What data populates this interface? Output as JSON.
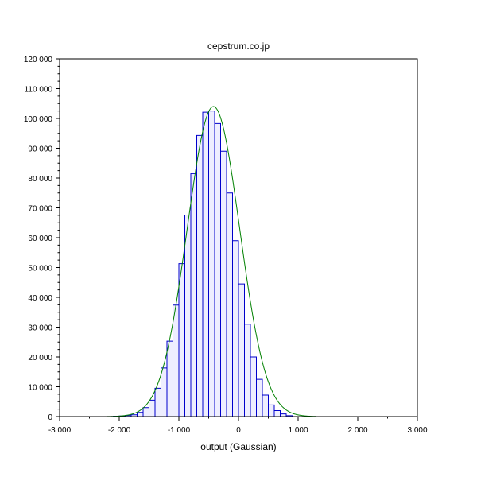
{
  "chart_data": {
    "type": "bar",
    "title": "cepstrum.co.jp",
    "xlabel": "output (Gaussian)",
    "ylabel": "",
    "xlim": [
      -3000,
      3000
    ],
    "ylim": [
      0,
      120000
    ],
    "grid": false,
    "x_ticks": [
      {
        "value": -3000,
        "label": "-3 000"
      },
      {
        "value": -2000,
        "label": "-2 000"
      },
      {
        "value": -1000,
        "label": "-1 000"
      },
      {
        "value": 0,
        "label": "0"
      },
      {
        "value": 1000,
        "label": "1 000"
      },
      {
        "value": 2000,
        "label": "2 000"
      },
      {
        "value": 3000,
        "label": "3 000"
      }
    ],
    "y_ticks": [
      {
        "value": 0,
        "label": "0"
      },
      {
        "value": 10000,
        "label": "10 000"
      },
      {
        "value": 20000,
        "label": "20 000"
      },
      {
        "value": 30000,
        "label": "30 000"
      },
      {
        "value": 40000,
        "label": "40 000"
      },
      {
        "value": 50000,
        "label": "50 000"
      },
      {
        "value": 60000,
        "label": "60 000"
      },
      {
        "value": 70000,
        "label": "70 000"
      },
      {
        "value": 80000,
        "label": "80 000"
      },
      {
        "value": 90000,
        "label": "90 000"
      },
      {
        "value": 100000,
        "label": "100 000"
      },
      {
        "value": 110000,
        "label": "110 000"
      },
      {
        "value": 120000,
        "label": "120 000"
      }
    ],
    "histogram": {
      "bin_width": 100,
      "bins": [
        {
          "x0": -2100,
          "x1": -2000,
          "value": 100
        },
        {
          "x0": -2000,
          "x1": -1900,
          "value": 200
        },
        {
          "x0": -1900,
          "x1": -1800,
          "value": 350
        },
        {
          "x0": -1800,
          "x1": -1700,
          "value": 600
        },
        {
          "x0": -1700,
          "x1": -1600,
          "value": 1400
        },
        {
          "x0": -1600,
          "x1": -1500,
          "value": 3000
        },
        {
          "x0": -1500,
          "x1": -1400,
          "value": 5500
        },
        {
          "x0": -1400,
          "x1": -1300,
          "value": 9500
        },
        {
          "x0": -1300,
          "x1": -1200,
          "value": 16300
        },
        {
          "x0": -1200,
          "x1": -1100,
          "value": 25300
        },
        {
          "x0": -1100,
          "x1": -1000,
          "value": 37400
        },
        {
          "x0": -1000,
          "x1": -900,
          "value": 51300
        },
        {
          "x0": -900,
          "x1": -800,
          "value": 67600
        },
        {
          "x0": -800,
          "x1": -700,
          "value": 81500
        },
        {
          "x0": -700,
          "x1": -600,
          "value": 94300
        },
        {
          "x0": -600,
          "x1": -500,
          "value": 102100
        },
        {
          "x0": -500,
          "x1": -400,
          "value": 102500
        },
        {
          "x0": -400,
          "x1": -300,
          "value": 98300
        },
        {
          "x0": -300,
          "x1": -200,
          "value": 89000
        },
        {
          "x0": -200,
          "x1": -100,
          "value": 75000
        },
        {
          "x0": -100,
          "x1": 0,
          "value": 59000
        },
        {
          "x0": 0,
          "x1": 100,
          "value": 44500
        },
        {
          "x0": 100,
          "x1": 200,
          "value": 31000
        },
        {
          "x0": 200,
          "x1": 300,
          "value": 20000
        },
        {
          "x0": 300,
          "x1": 400,
          "value": 12500
        },
        {
          "x0": 400,
          "x1": 500,
          "value": 7200
        },
        {
          "x0": 500,
          "x1": 600,
          "value": 3900
        },
        {
          "x0": 600,
          "x1": 700,
          "value": 2000
        },
        {
          "x0": 700,
          "x1": 800,
          "value": 900
        },
        {
          "x0": 800,
          "x1": 900,
          "value": 300
        }
      ],
      "fill_color": "#eeeeff",
      "edge_color": "#0000cc"
    },
    "fit_curve": {
      "type": "gaussian",
      "peak": 104000,
      "mean": -420,
      "sigma": 440,
      "x_range": [
        -2200,
        1300
      ],
      "color": "#008000"
    }
  }
}
